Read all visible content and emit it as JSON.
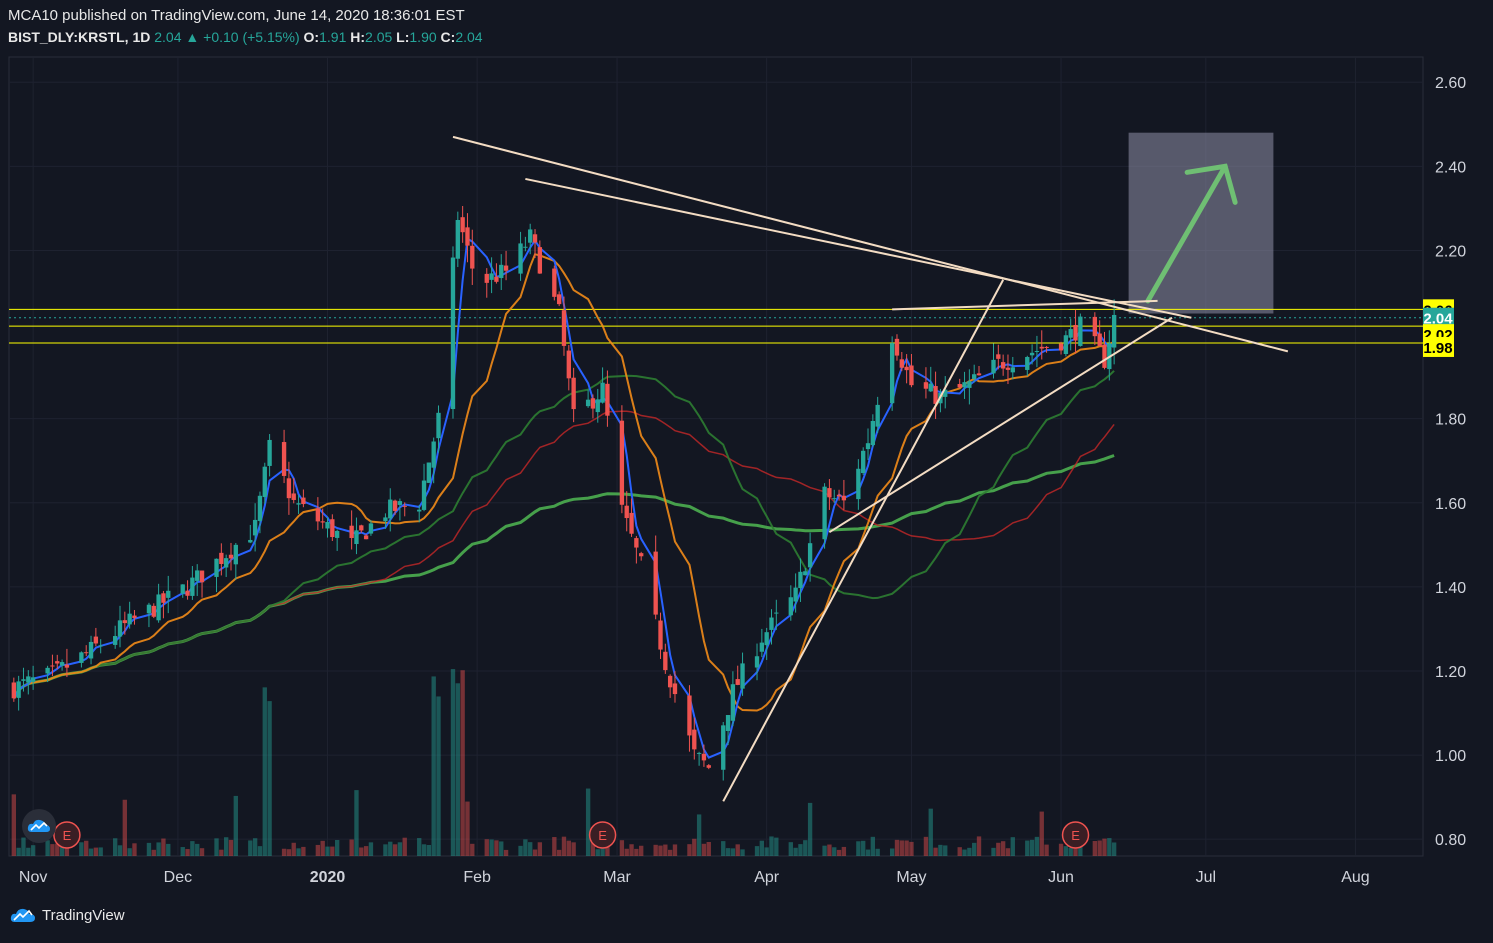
{
  "header": {
    "publish_line": "MCA10 published on TradingView.com, June 14, 2020 18:36:01 EST",
    "symbol": "BIST_DLY:KRSTL, 1D",
    "last": "2.04",
    "change": "+0.10 (+5.15%)",
    "o_label": "O:",
    "o_value": "1.91",
    "h_label": "H:",
    "h_value": "2.05",
    "l_label": "L:",
    "l_value": "1.90",
    "c_label": "C:",
    "c_value": "2.04"
  },
  "footer": {
    "brand": "TradingView"
  },
  "earnings_marker": "E",
  "colors": {
    "background": "#131722",
    "up": "#26a69a",
    "down": "#ef5350",
    "ema_fast": "#2962ff",
    "ema_mid": "#f28b18",
    "ma_green": "#2e7d32",
    "ma_red": "#c62828",
    "ma_long": "#4caf50",
    "trendline": "#f3dcc3",
    "horizontal": "#ffff00",
    "target_box": "#8f8fa8",
    "arrow": "#6fbf73"
  },
  "chart_data": {
    "type": "candlestick",
    "symbol": "BIST_DLY:KRSTL",
    "interval": "1D",
    "ylim": [
      0.76,
      2.66
    ],
    "y_ticks": [
      "2.60",
      "2.40",
      "2.20",
      "1.80",
      "1.60",
      "1.40",
      "1.20",
      "1.00",
      "0.80"
    ],
    "x_labels": [
      "Nov",
      "Dec",
      "2020",
      "Feb",
      "Mar",
      "Apr",
      "May",
      "Jun",
      "Jul",
      "Aug"
    ],
    "price_markers": [
      {
        "value": "2.06",
        "style": "yellow"
      },
      {
        "value": "2.04",
        "style": "current"
      },
      {
        "value": "2.02",
        "style": "yellow"
      },
      {
        "value": "1.98",
        "style": "yellow"
      }
    ],
    "horizontal_levels": [
      2.06,
      2.02,
      1.98
    ],
    "close_path": [
      [
        "2019-10-28",
        1.16
      ],
      [
        "2019-11-05",
        1.19
      ],
      [
        "2019-11-12",
        1.24
      ],
      [
        "2019-11-19",
        1.3
      ],
      [
        "2019-11-26",
        1.35
      ],
      [
        "2019-12-03",
        1.4
      ],
      [
        "2019-12-10",
        1.47
      ],
      [
        "2019-12-17",
        1.54
      ],
      [
        "2019-12-20",
        1.73
      ],
      [
        "2019-12-25",
        1.6
      ],
      [
        "2019-12-31",
        1.55
      ],
      [
        "2020-01-06",
        1.5
      ],
      [
        "2020-01-13",
        1.58
      ],
      [
        "2020-01-20",
        1.6
      ],
      [
        "2020-01-24",
        1.8
      ],
      [
        "2020-01-28",
        2.28
      ],
      [
        "2020-02-01",
        2.12
      ],
      [
        "2020-02-07",
        2.15
      ],
      [
        "2020-02-12",
        2.23
      ],
      [
        "2020-02-18",
        2.05
      ],
      [
        "2020-02-21",
        1.8
      ],
      [
        "2020-02-27",
        1.87
      ],
      [
        "2020-03-02",
        1.58
      ],
      [
        "2020-03-06",
        1.45
      ],
      [
        "2020-03-11",
        1.22
      ],
      [
        "2020-03-17",
        1.0
      ],
      [
        "2020-03-20",
        0.97
      ],
      [
        "2020-03-25",
        1.15
      ],
      [
        "2020-03-31",
        1.28
      ],
      [
        "2020-04-07",
        1.38
      ],
      [
        "2020-04-13",
        1.62
      ],
      [
        "2020-04-17",
        1.6
      ],
      [
        "2020-04-22",
        1.75
      ],
      [
        "2020-04-27",
        2.0
      ],
      [
        "2020-05-01",
        1.88
      ],
      [
        "2020-05-07",
        1.85
      ],
      [
        "2020-05-13",
        1.88
      ],
      [
        "2020-05-19",
        1.93
      ],
      [
        "2020-05-26",
        1.96
      ],
      [
        "2020-06-02",
        1.99
      ],
      [
        "2020-06-05",
        2.02
      ],
      [
        "2020-06-10",
        1.94
      ],
      [
        "2020-06-12",
        2.04
      ]
    ],
    "volume_spikes": [
      "2019-12-20",
      "2020-01-24",
      "2020-01-28"
    ]
  }
}
